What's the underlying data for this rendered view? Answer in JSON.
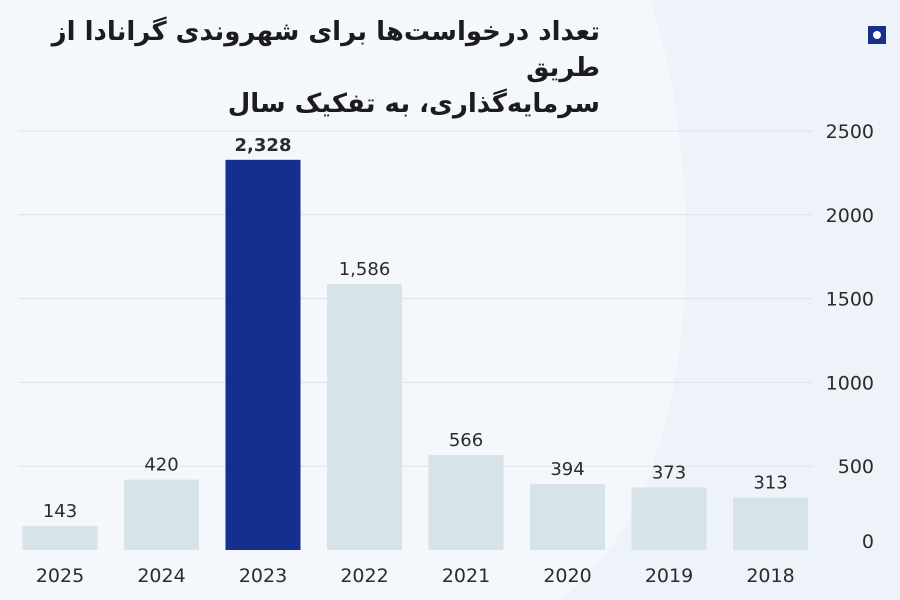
{
  "header": {
    "title_line1": "تعداد درخواست‌ها برای شهروندی گرانادا از طریق",
    "title_line2": "سرمایه‌گذاری، به تفکیک سال",
    "logo_icon": "square-dot-logo"
  },
  "colors": {
    "bar": "#d6e3e8",
    "bar_highlight": "#142f8f",
    "grid": "#dce2ea",
    "background": "#f4f7fc"
  },
  "chart_data": {
    "type": "bar",
    "title": "تعداد درخواست‌ها برای شهروندی گرانادا از طریق سرمایه‌گذاری، به تفکیک سال",
    "xlabel": "",
    "ylabel": "",
    "categories": [
      "2025",
      "2024",
      "2023",
      "2022",
      "2021",
      "2020",
      "2019",
      "2018"
    ],
    "values": [
      143,
      420,
      2328,
      1586,
      566,
      394,
      373,
      313
    ],
    "value_labels": [
      "143",
      "420",
      "2,328",
      "1,586",
      "566",
      "394",
      "373",
      "313"
    ],
    "highlight_category": "2023",
    "ylim": [
      0,
      2500
    ],
    "yticks": [
      "0",
      "500",
      "1000",
      "1500",
      "2000",
      "2500"
    ],
    "y_axis_side": "right",
    "grid": true,
    "legend": "none"
  }
}
